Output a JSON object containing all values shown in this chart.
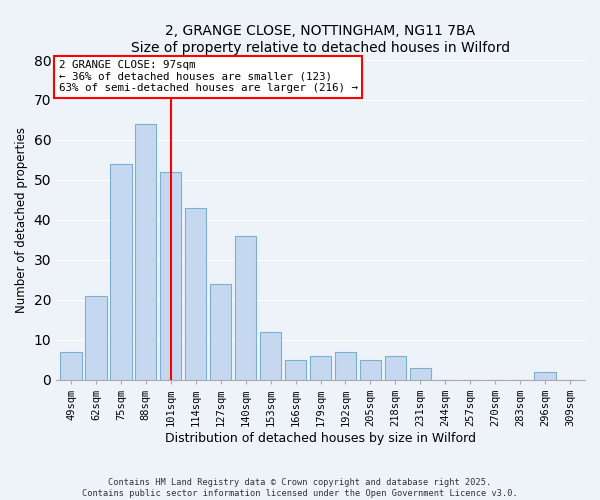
{
  "title": "2, GRANGE CLOSE, NOTTINGHAM, NG11 7BA",
  "subtitle": "Size of property relative to detached houses in Wilford",
  "xlabel": "Distribution of detached houses by size in Wilford",
  "ylabel": "Number of detached properties",
  "categories": [
    "49sqm",
    "62sqm",
    "75sqm",
    "88sqm",
    "101sqm",
    "114sqm",
    "127sqm",
    "140sqm",
    "153sqm",
    "166sqm",
    "179sqm",
    "192sqm",
    "205sqm",
    "218sqm",
    "231sqm",
    "244sqm",
    "257sqm",
    "270sqm",
    "283sqm",
    "296sqm",
    "309sqm"
  ],
  "values": [
    7,
    21,
    54,
    64,
    52,
    43,
    24,
    36,
    12,
    5,
    6,
    7,
    5,
    6,
    3,
    0,
    0,
    0,
    0,
    2,
    0
  ],
  "bar_color": "#c5d8f0",
  "bar_edge_color": "#7bafd4",
  "vline_x_index": 4,
  "vline_color": "red",
  "annotation_title": "2 GRANGE CLOSE: 97sqm",
  "annotation_line1": "← 36% of detached houses are smaller (123)",
  "annotation_line2": "63% of semi-detached houses are larger (216) →",
  "annotation_box_color": "white",
  "annotation_box_edge_color": "red",
  "ylim": [
    0,
    80
  ],
  "yticks": [
    0,
    10,
    20,
    30,
    40,
    50,
    60,
    70,
    80
  ],
  "bg_color": "#eef3f9",
  "footer_line1": "Contains HM Land Registry data © Crown copyright and database right 2025.",
  "footer_line2": "Contains public sector information licensed under the Open Government Licence v3.0."
}
